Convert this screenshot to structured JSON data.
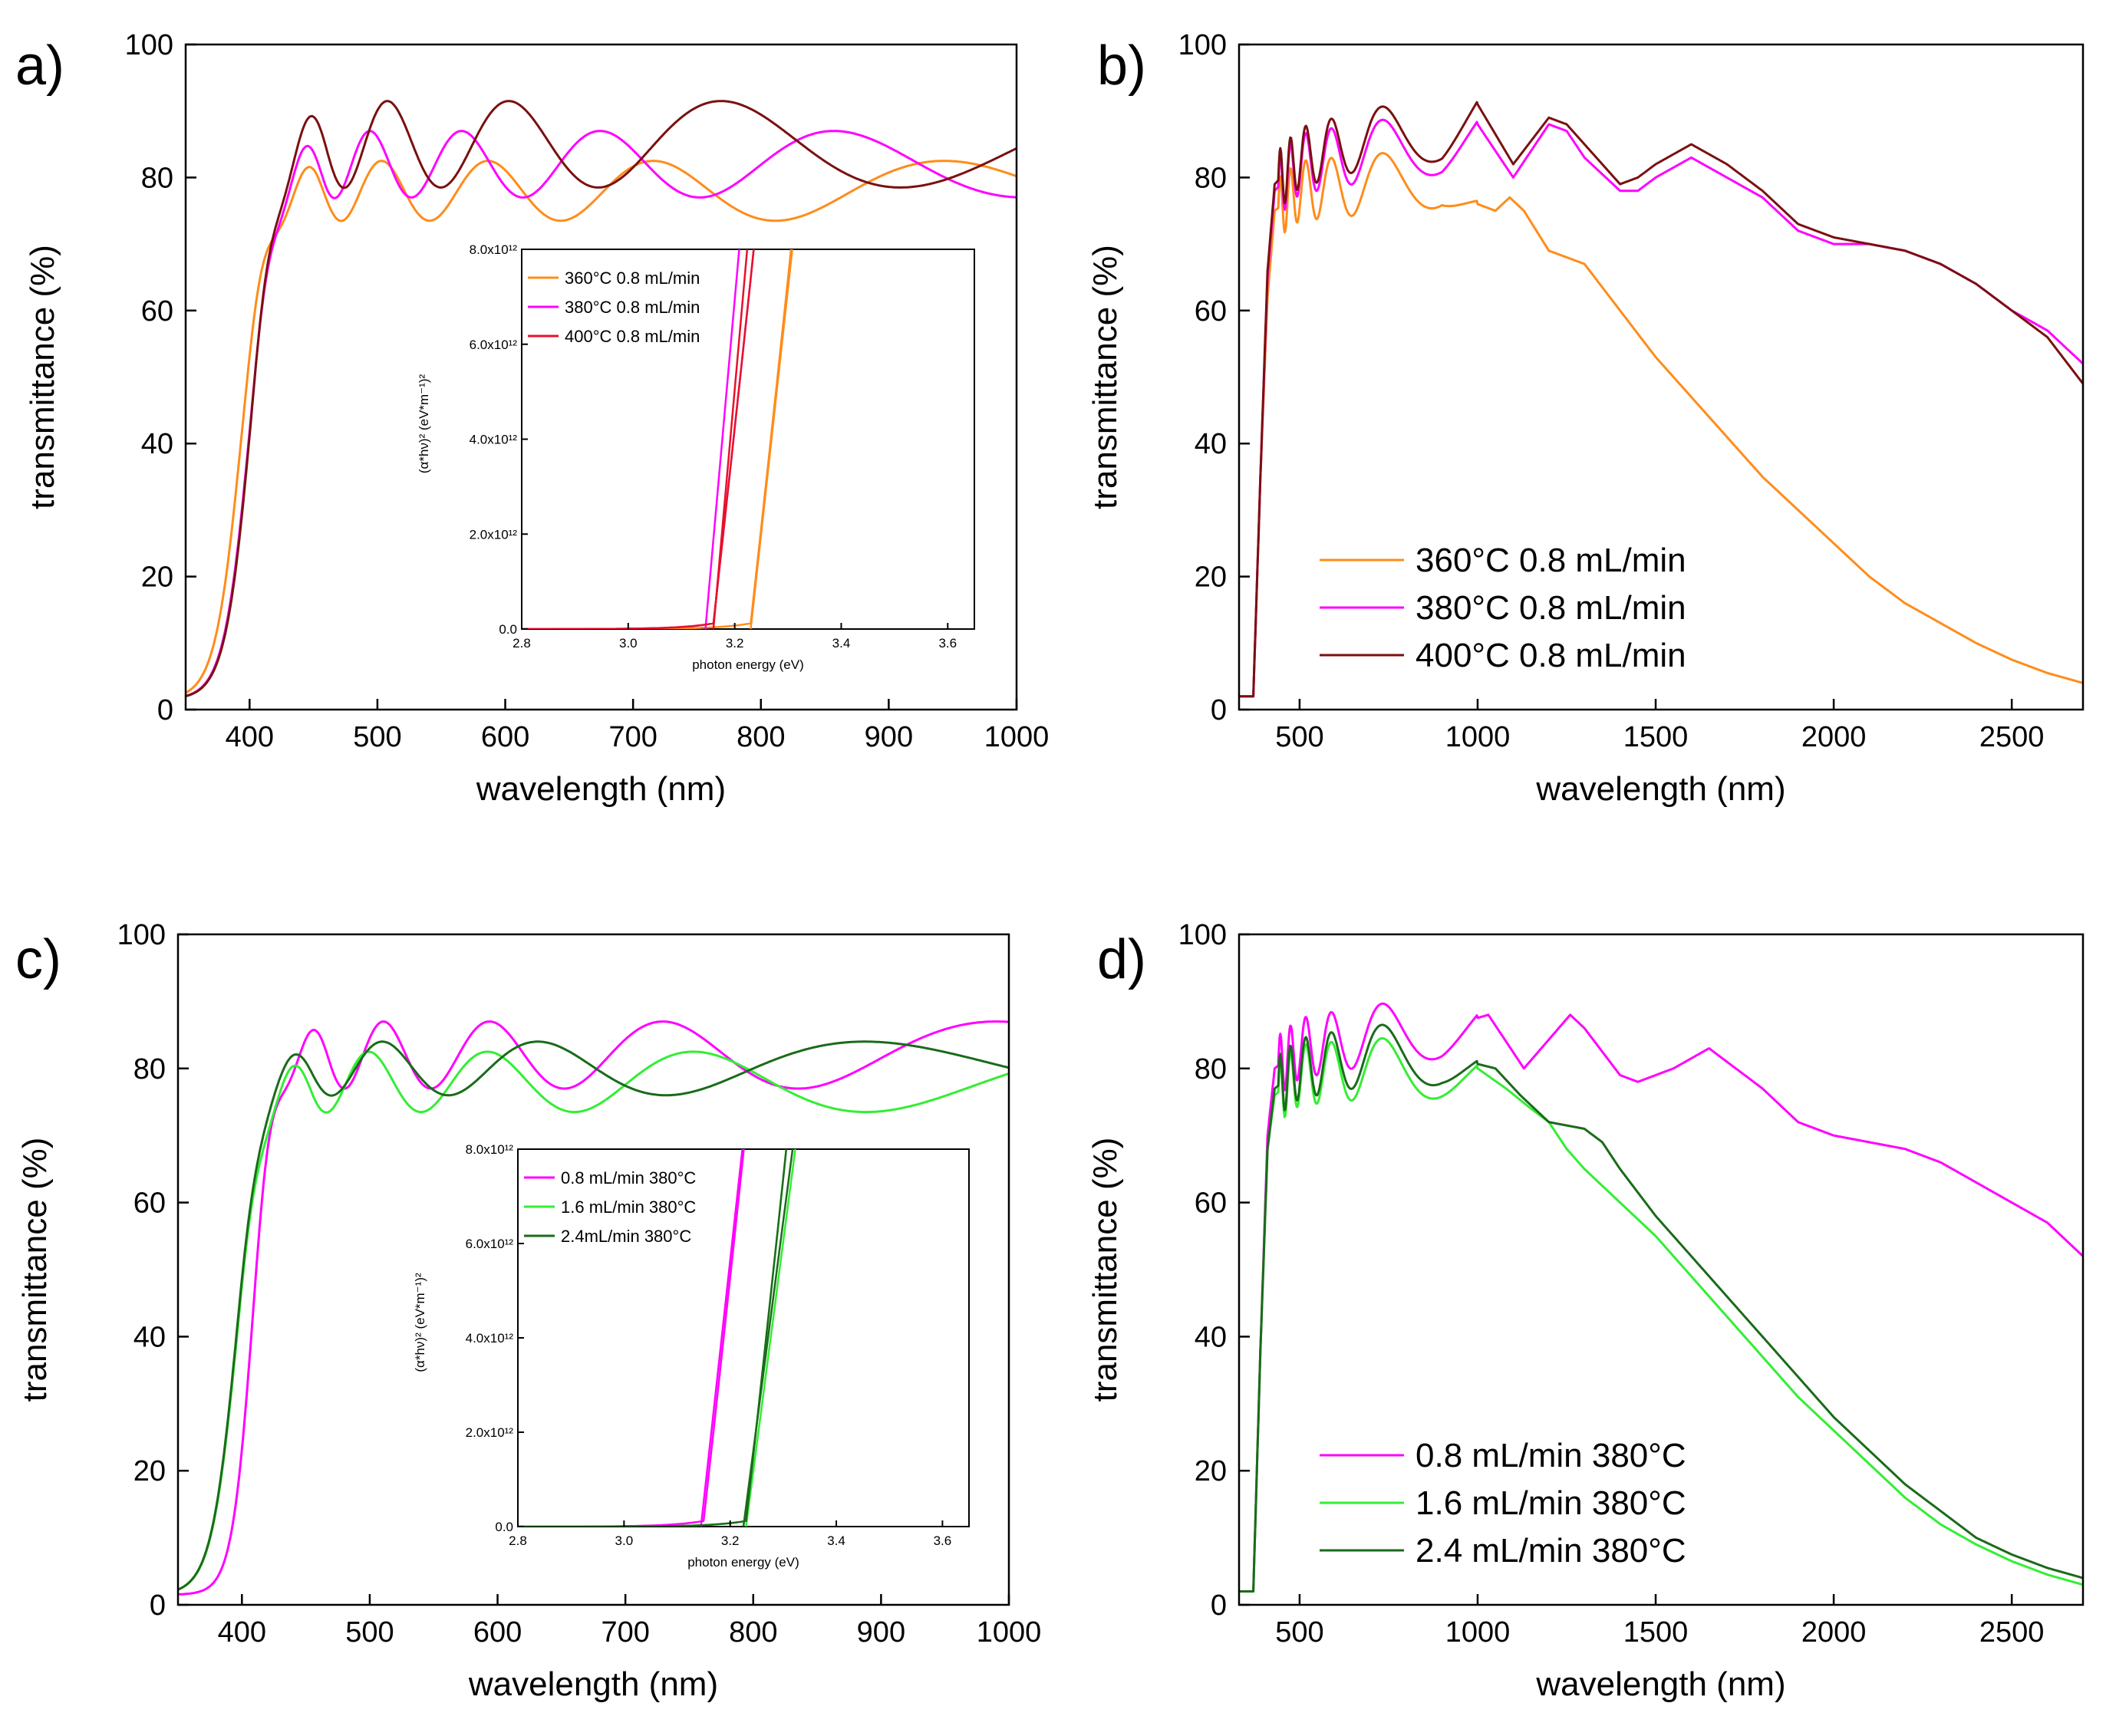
{
  "colors": {
    "c360": "#ff8c1a",
    "c380": "#ff00ff",
    "c400": "#7a1010",
    "c400_inset": "#e8102a",
    "c16": "#33ee33",
    "c24": "#1a6b1a"
  },
  "chart_data": [
    {
      "id": "a",
      "panel_label": "a)",
      "type": "line",
      "xlabel": "wavelength (nm)",
      "ylabel": "transmittance (%)",
      "xlim": [
        350,
        1000
      ],
      "ylim": [
        0,
        100
      ],
      "xticks": [
        400,
        500,
        600,
        700,
        800,
        900,
        1000
      ],
      "yticks": [
        0,
        20,
        40,
        60,
        80,
        100
      ],
      "series": [
        {
          "name": "360°C 0.8 mL/min",
          "color_key": "c360",
          "model": {
            "edge": 393,
            "width": 10,
            "plateau": 78,
            "amp": 4.5,
            "period0": 35,
            "pscale": 0.145,
            "phase": 0.0
          }
        },
        {
          "name": "380°C 0.8 mL/min",
          "color_key": "c380",
          "model": {
            "edge": 400,
            "width": 10,
            "plateau": 82,
            "amp": 5,
            "period0": 32,
            "pscale": 0.155,
            "phase": 0.6
          }
        },
        {
          "name": "400°C 0.8 mL/min",
          "color_key": "c400",
          "model": {
            "edge": 401,
            "width": 10,
            "plateau": 85,
            "amp": 6.5,
            "period0": 36,
            "pscale": 0.165,
            "phase": 1.2
          }
        }
      ],
      "inset": {
        "xlabel": "photon energy (eV)",
        "ylabel": "(α*hν)² (eV*m⁻¹)²",
        "xlim": [
          2.8,
          3.65
        ],
        "ylim": [
          0,
          8000000000000.0
        ],
        "xticks": [
          "2.8",
          "3.0",
          "3.2",
          "3.4",
          "3.6"
        ],
        "yticks": [
          "0.0",
          "2.0x10¹²",
          "4.0x10¹²",
          "6.0x10¹²",
          "8.0x10¹²"
        ],
        "series": [
          {
            "name": "360°C 0.8 mL/min",
            "color_key": "c360",
            "onset": 3.23,
            "tangent": [
              3.23,
              3.31
            ]
          },
          {
            "name": "380°C 0.8 mL/min",
            "color_key": "c380",
            "onset": 3.16,
            "tangent": [
              3.145,
              3.21
            ]
          },
          {
            "name": "400°C 0.8 mL/min",
            "color_key": "c400_inset",
            "onset": 3.16,
            "tangent": [
              3.16,
              3.225
            ]
          }
        ]
      }
    },
    {
      "id": "b",
      "panel_label": "b)",
      "type": "line",
      "xlabel": "wavelength (nm)",
      "ylabel": "transmittance (%)",
      "xlim": [
        330,
        2700
      ],
      "ylim": [
        0,
        100
      ],
      "xticks": [
        500,
        1000,
        1500,
        2000,
        2500
      ],
      "yticks": [
        0,
        20,
        40,
        60,
        80,
        100
      ],
      "legend_position": "bottom-left",
      "series": [
        {
          "name": "360°C  0.8 mL/min",
          "color_key": "c360",
          "points": [
            [
              350,
              2
            ],
            [
              370,
              2
            ],
            [
              390,
              35
            ],
            [
              410,
              62
            ],
            [
              430,
              75
            ],
            [
              500,
              78
            ],
            [
              700,
              79
            ],
            [
              900,
              80
            ],
            [
              1000,
              76
            ],
            [
              1050,
              75
            ],
            [
              1090,
              77
            ],
            [
              1130,
              75
            ],
            [
              1200,
              69
            ],
            [
              1300,
              67
            ],
            [
              1400,
              60
            ],
            [
              1500,
              53
            ],
            [
              1600,
              47
            ],
            [
              1700,
              41
            ],
            [
              1800,
              35
            ],
            [
              1900,
              30
            ],
            [
              2000,
              25
            ],
            [
              2100,
              20
            ],
            [
              2200,
              16
            ],
            [
              2300,
              13
            ],
            [
              2400,
              10
            ],
            [
              2500,
              7.5
            ],
            [
              2600,
              5.5
            ],
            [
              2700,
              4
            ]
          ]
        },
        {
          "name": "380°C  0.8 mL/min",
          "color_key": "c380",
          "points": [
            [
              350,
              2
            ],
            [
              370,
              2
            ],
            [
              390,
              35
            ],
            [
              410,
              65
            ],
            [
              430,
              78
            ],
            [
              500,
              82
            ],
            [
              700,
              84
            ],
            [
              900,
              85
            ],
            [
              1000,
              88
            ],
            [
              1100,
              80
            ],
            [
              1200,
              88
            ],
            [
              1250,
              87
            ],
            [
              1300,
              83
            ],
            [
              1400,
              78
            ],
            [
              1450,
              78
            ],
            [
              1500,
              80
            ],
            [
              1600,
              83
            ],
            [
              1700,
              80
            ],
            [
              1800,
              77
            ],
            [
              1900,
              72
            ],
            [
              2000,
              70
            ],
            [
              2100,
              70
            ],
            [
              2200,
              69
            ],
            [
              2300,
              67
            ],
            [
              2400,
              64
            ],
            [
              2500,
              60
            ],
            [
              2600,
              57
            ],
            [
              2700,
              52
            ]
          ]
        },
        {
          "name": "400°C  0.8 mL/min",
          "color_key": "c400",
          "points": [
            [
              350,
              2
            ],
            [
              370,
              2
            ],
            [
              390,
              35
            ],
            [
              410,
              66
            ],
            [
              430,
              79
            ],
            [
              500,
              83
            ],
            [
              700,
              86
            ],
            [
              900,
              87
            ],
            [
              1000,
              91
            ],
            [
              1100,
              82
            ],
            [
              1200,
              89
            ],
            [
              1250,
              88
            ],
            [
              1300,
              85
            ],
            [
              1400,
              79
            ],
            [
              1450,
              80
            ],
            [
              1500,
              82
            ],
            [
              1600,
              85
            ],
            [
              1700,
              82
            ],
            [
              1800,
              78
            ],
            [
              1900,
              73
            ],
            [
              2000,
              71
            ],
            [
              2100,
              70
            ],
            [
              2200,
              69
            ],
            [
              2300,
              67
            ],
            [
              2400,
              64
            ],
            [
              2500,
              60
            ],
            [
              2600,
              56
            ],
            [
              2700,
              49
            ]
          ]
        }
      ]
    },
    {
      "id": "c",
      "panel_label": "c)",
      "type": "line",
      "xlabel": "wavelength (nm)",
      "ylabel": "transmittance (%)",
      "xlim": [
        350,
        1000
      ],
      "ylim": [
        0,
        100
      ],
      "xticks": [
        400,
        500,
        600,
        700,
        800,
        900,
        1000
      ],
      "yticks": [
        0,
        20,
        40,
        60,
        80,
        100
      ],
      "series": [
        {
          "name": "0.8 mL/min 380°C",
          "color_key": "c380",
          "model": {
            "edge": 408,
            "width": 8,
            "plateau": 82,
            "amp": 5,
            "period0": 33,
            "pscale": 0.165,
            "phase": 0.4
          }
        },
        {
          "name": "1.6 mL/min 380°C",
          "color_key": "c16",
          "model": {
            "edge": 396,
            "width": 10,
            "plateau": 78,
            "amp": 4.5,
            "period0": 36,
            "pscale": 0.165,
            "phase": 1.5
          }
        },
        {
          "name": "2.4mL/min 380°C",
          "color_key": "c24",
          "model": {
            "edge": 396,
            "width": 10,
            "plateau": 80,
            "amp": 4,
            "period0": 40,
            "pscale": 0.175,
            "phase": 2.2
          }
        }
      ],
      "inset": {
        "xlabel": "photon energy (eV)",
        "ylabel": "(α*hν)² (eV*m⁻¹)²",
        "xlim": [
          2.8,
          3.65
        ],
        "ylim": [
          0,
          8000000000000.0
        ],
        "xticks": [
          "2.8",
          "3.0",
          "3.2",
          "3.4",
          "3.6"
        ],
        "yticks": [
          "0.0",
          "2.0x10¹²",
          "4.0x10¹²",
          "6.0x10¹²",
          "8.0x10¹²"
        ],
        "series": [
          {
            "name": "0.8 mL/min 380°C",
            "color_key": "c380",
            "onset": 3.15,
            "tangent": [
              3.145,
              3.225
            ]
          },
          {
            "name": "1.6 mL/min 380°C",
            "color_key": "c16",
            "onset": 3.23,
            "tangent": [
              3.23,
              3.325
            ]
          },
          {
            "name": "2.4mL/min 380°C",
            "color_key": "c24",
            "onset": 3.23,
            "tangent": [
              3.225,
              3.32
            ]
          }
        ]
      }
    },
    {
      "id": "d",
      "panel_label": "d)",
      "type": "line",
      "xlabel": "wavelength (nm)",
      "ylabel": "transmittance (%)",
      "xlim": [
        330,
        2700
      ],
      "ylim": [
        0,
        100
      ],
      "xticks": [
        500,
        1000,
        1500,
        2000,
        2500
      ],
      "yticks": [
        0,
        20,
        40,
        60,
        80,
        100
      ],
      "legend_position": "bottom-left",
      "series": [
        {
          "name": "0.8 mL/min 380°C",
          "color_key": "c380",
          "points": [
            [
              350,
              2
            ],
            [
              370,
              2
            ],
            [
              390,
              38
            ],
            [
              410,
              70
            ],
            [
              430,
              80
            ],
            [
              500,
              83
            ],
            [
              700,
              85
            ],
            [
              900,
              86
            ],
            [
              1030,
              88
            ],
            [
              1130,
              80
            ],
            [
              1260,
              88
            ],
            [
              1300,
              86
            ],
            [
              1400,
              79
            ],
            [
              1450,
              78
            ],
            [
              1550,
              80
            ],
            [
              1650,
              83
            ],
            [
              1700,
              81
            ],
            [
              1800,
              77
            ],
            [
              1900,
              72
            ],
            [
              2000,
              70
            ],
            [
              2100,
              69
            ],
            [
              2200,
              68
            ],
            [
              2300,
              66
            ],
            [
              2400,
              63
            ],
            [
              2500,
              60
            ],
            [
              2600,
              57
            ],
            [
              2700,
              52
            ]
          ]
        },
        {
          "name": "1.6 mL/min 380°C",
          "color_key": "c16",
          "points": [
            [
              350,
              2
            ],
            [
              370,
              2
            ],
            [
              390,
              38
            ],
            [
              410,
              68
            ],
            [
              430,
              76
            ],
            [
              500,
              79
            ],
            [
              700,
              80
            ],
            [
              900,
              80
            ],
            [
              1000,
              80
            ],
            [
              1080,
              77
            ],
            [
              1150,
              74
            ],
            [
              1200,
              72
            ],
            [
              1250,
              68
            ],
            [
              1300,
              65
            ],
            [
              1400,
              60
            ],
            [
              1500,
              55
            ],
            [
              1600,
              49
            ],
            [
              1700,
              43
            ],
            [
              1800,
              37
            ],
            [
              1900,
              31
            ],
            [
              2000,
              26
            ],
            [
              2100,
              21
            ],
            [
              2200,
              16
            ],
            [
              2300,
              12
            ],
            [
              2400,
              9
            ],
            [
              2500,
              6.5
            ],
            [
              2600,
              4.5
            ],
            [
              2700,
              3
            ]
          ]
        },
        {
          "name": "2.4 mL/min 380°C",
          "color_key": "c24",
          "points": [
            [
              350,
              2
            ],
            [
              370,
              2
            ],
            [
              390,
              38
            ],
            [
              410,
              68
            ],
            [
              430,
              77
            ],
            [
              500,
              80
            ],
            [
              700,
              82
            ],
            [
              900,
              82
            ],
            [
              1050,
              80
            ],
            [
              1120,
              76
            ],
            [
              1200,
              72
            ],
            [
              1300,
              71
            ],
            [
              1350,
              69
            ],
            [
              1400,
              65
            ],
            [
              1500,
              58
            ],
            [
              1600,
              52
            ],
            [
              1700,
              46
            ],
            [
              1800,
              40
            ],
            [
              1900,
              34
            ],
            [
              2000,
              28
            ],
            [
              2100,
              23
            ],
            [
              2200,
              18
            ],
            [
              2300,
              14
            ],
            [
              2400,
              10
            ],
            [
              2500,
              7.5
            ],
            [
              2600,
              5.5
            ],
            [
              2700,
              4
            ]
          ]
        }
      ]
    }
  ]
}
